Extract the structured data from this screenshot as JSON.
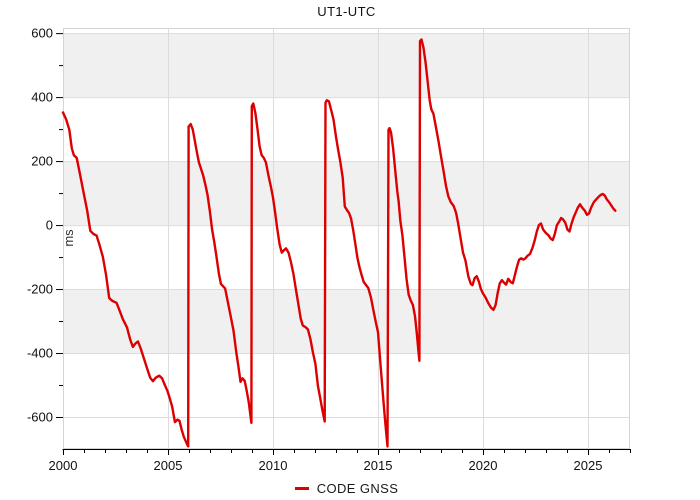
{
  "chart_data": {
    "type": "line",
    "title": "UT1-UTC",
    "ylabel": "ms",
    "legend_position": "bottom-center",
    "grid": true,
    "axes": {
      "xlim": [
        2000,
        2027
      ],
      "ylim": [
        -700,
        616
      ],
      "x_major_ticks": [
        2000,
        2005,
        2010,
        2015,
        2020,
        2025
      ],
      "x_minor_step": 1,
      "y_major_ticks": [
        -600,
        -400,
        -200,
        0,
        200,
        400,
        600
      ],
      "y_minor_step": 100,
      "bands": [
        [
          400,
          600
        ],
        [
          0,
          200
        ],
        [
          -400,
          -200
        ]
      ],
      "band_color": "#f0f0f0",
      "grid_color": "#dcdcdc",
      "axis_color": "#000000",
      "tick_label_color": "#111111"
    },
    "series": [
      {
        "name": "CODE GNSS",
        "color": "#dd0000",
        "width": 2.4,
        "points": [
          [
            2000.0,
            352
          ],
          [
            2000.15,
            330
          ],
          [
            2000.3,
            298
          ],
          [
            2000.42,
            240
          ],
          [
            2000.52,
            218
          ],
          [
            2000.65,
            210
          ],
          [
            2000.8,
            162
          ],
          [
            2001.0,
            95
          ],
          [
            2001.15,
            45
          ],
          [
            2001.3,
            -18
          ],
          [
            2001.45,
            -28
          ],
          [
            2001.6,
            -33
          ],
          [
            2001.75,
            -65
          ],
          [
            2001.9,
            -100
          ],
          [
            2002.05,
            -155
          ],
          [
            2002.2,
            -228
          ],
          [
            2002.35,
            -237
          ],
          [
            2002.55,
            -243
          ],
          [
            2002.7,
            -268
          ],
          [
            2002.85,
            -294
          ],
          [
            2003.05,
            -320
          ],
          [
            2003.2,
            -358
          ],
          [
            2003.33,
            -381
          ],
          [
            2003.45,
            -370
          ],
          [
            2003.57,
            -364
          ],
          [
            2003.7,
            -386
          ],
          [
            2003.85,
            -416
          ],
          [
            2004.0,
            -447
          ],
          [
            2004.15,
            -477
          ],
          [
            2004.28,
            -488
          ],
          [
            2004.42,
            -477
          ],
          [
            2004.58,
            -471
          ],
          [
            2004.72,
            -479
          ],
          [
            2004.85,
            -500
          ],
          [
            2004.97,
            -518
          ],
          [
            2005.1,
            -545
          ],
          [
            2005.2,
            -568
          ],
          [
            2005.33,
            -616
          ],
          [
            2005.45,
            -608
          ],
          [
            2005.55,
            -612
          ],
          [
            2005.65,
            -640
          ],
          [
            2005.75,
            -662
          ],
          [
            2005.85,
            -676
          ],
          [
            2005.93,
            -688
          ],
          [
            2005.96,
            -692
          ],
          [
            2005.98,
            308
          ],
          [
            2006.08,
            316
          ],
          [
            2006.18,
            298
          ],
          [
            2006.28,
            262
          ],
          [
            2006.38,
            226
          ],
          [
            2006.47,
            196
          ],
          [
            2006.57,
            176
          ],
          [
            2006.67,
            156
          ],
          [
            2006.78,
            126
          ],
          [
            2006.88,
            95
          ],
          [
            2007.0,
            40
          ],
          [
            2007.1,
            -14
          ],
          [
            2007.2,
            -52
          ],
          [
            2007.3,
            -95
          ],
          [
            2007.42,
            -150
          ],
          [
            2007.52,
            -184
          ],
          [
            2007.62,
            -191
          ],
          [
            2007.72,
            -198
          ],
          [
            2007.85,
            -240
          ],
          [
            2008.0,
            -290
          ],
          [
            2008.12,
            -330
          ],
          [
            2008.25,
            -398
          ],
          [
            2008.38,
            -455
          ],
          [
            2008.45,
            -490
          ],
          [
            2008.55,
            -479
          ],
          [
            2008.65,
            -487
          ],
          [
            2008.75,
            -520
          ],
          [
            2008.85,
            -555
          ],
          [
            2008.92,
            -592
          ],
          [
            2008.97,
            -618
          ],
          [
            2008.99,
            372
          ],
          [
            2009.06,
            380
          ],
          [
            2009.16,
            350
          ],
          [
            2009.26,
            300
          ],
          [
            2009.36,
            246
          ],
          [
            2009.46,
            218
          ],
          [
            2009.56,
            210
          ],
          [
            2009.66,
            196
          ],
          [
            2009.78,
            156
          ],
          [
            2009.9,
            120
          ],
          [
            2010.0,
            86
          ],
          [
            2010.1,
            40
          ],
          [
            2010.2,
            -10
          ],
          [
            2010.32,
            -62
          ],
          [
            2010.42,
            -86
          ],
          [
            2010.52,
            -79
          ],
          [
            2010.62,
            -73
          ],
          [
            2010.74,
            -86
          ],
          [
            2010.85,
            -114
          ],
          [
            2010.97,
            -152
          ],
          [
            2011.1,
            -205
          ],
          [
            2011.22,
            -252
          ],
          [
            2011.32,
            -292
          ],
          [
            2011.42,
            -314
          ],
          [
            2011.55,
            -319
          ],
          [
            2011.66,
            -326
          ],
          [
            2011.78,
            -356
          ],
          [
            2011.9,
            -398
          ],
          [
            2012.02,
            -434
          ],
          [
            2012.14,
            -502
          ],
          [
            2012.26,
            -546
          ],
          [
            2012.36,
            -582
          ],
          [
            2012.46,
            -614
          ],
          [
            2012.5,
            382
          ],
          [
            2012.56,
            390
          ],
          [
            2012.66,
            387
          ],
          [
            2012.76,
            362
          ],
          [
            2012.88,
            330
          ],
          [
            2013.0,
            276
          ],
          [
            2013.1,
            236
          ],
          [
            2013.2,
            200
          ],
          [
            2013.32,
            148
          ],
          [
            2013.42,
            58
          ],
          [
            2013.52,
            47
          ],
          [
            2013.62,
            38
          ],
          [
            2013.72,
            20
          ],
          [
            2013.82,
            -16
          ],
          [
            2013.92,
            -58
          ],
          [
            2014.02,
            -102
          ],
          [
            2014.12,
            -132
          ],
          [
            2014.22,
            -156
          ],
          [
            2014.32,
            -178
          ],
          [
            2014.44,
            -188
          ],
          [
            2014.54,
            -197
          ],
          [
            2014.66,
            -226
          ],
          [
            2014.78,
            -266
          ],
          [
            2014.9,
            -305
          ],
          [
            2015.0,
            -335
          ],
          [
            2015.1,
            -420
          ],
          [
            2015.2,
            -502
          ],
          [
            2015.3,
            -582
          ],
          [
            2015.38,
            -642
          ],
          [
            2015.45,
            -692
          ],
          [
            2015.5,
            298
          ],
          [
            2015.55,
            303
          ],
          [
            2015.62,
            290
          ],
          [
            2015.72,
            240
          ],
          [
            2015.82,
            172
          ],
          [
            2015.92,
            105
          ],
          [
            2015.98,
            75
          ],
          [
            2016.06,
            15
          ],
          [
            2016.16,
            -32
          ],
          [
            2016.26,
            -100
          ],
          [
            2016.36,
            -170
          ],
          [
            2016.46,
            -218
          ],
          [
            2016.56,
            -236
          ],
          [
            2016.66,
            -250
          ],
          [
            2016.76,
            -285
          ],
          [
            2016.85,
            -338
          ],
          [
            2016.92,
            -390
          ],
          [
            2016.97,
            -424
          ],
          [
            2017.0,
            575
          ],
          [
            2017.07,
            580
          ],
          [
            2017.16,
            556
          ],
          [
            2017.26,
            510
          ],
          [
            2017.36,
            450
          ],
          [
            2017.46,
            390
          ],
          [
            2017.54,
            362
          ],
          [
            2017.64,
            348
          ],
          [
            2017.76,
            305
          ],
          [
            2017.88,
            262
          ],
          [
            2018.0,
            215
          ],
          [
            2018.12,
            170
          ],
          [
            2018.24,
            122
          ],
          [
            2018.35,
            90
          ],
          [
            2018.46,
            72
          ],
          [
            2018.6,
            60
          ],
          [
            2018.72,
            38
          ],
          [
            2018.82,
            4
          ],
          [
            2018.92,
            -36
          ],
          [
            2019.05,
            -86
          ],
          [
            2019.16,
            -110
          ],
          [
            2019.3,
            -160
          ],
          [
            2019.42,
            -184
          ],
          [
            2019.5,
            -188
          ],
          [
            2019.6,
            -166
          ],
          [
            2019.7,
            -160
          ],
          [
            2019.8,
            -176
          ],
          [
            2019.9,
            -200
          ],
          [
            2020.0,
            -214
          ],
          [
            2020.12,
            -226
          ],
          [
            2020.25,
            -244
          ],
          [
            2020.38,
            -258
          ],
          [
            2020.5,
            -265
          ],
          [
            2020.6,
            -250
          ],
          [
            2020.7,
            -212
          ],
          [
            2020.8,
            -182
          ],
          [
            2020.9,
            -172
          ],
          [
            2021.0,
            -180
          ],
          [
            2021.1,
            -186
          ],
          [
            2021.2,
            -168
          ],
          [
            2021.32,
            -178
          ],
          [
            2021.42,
            -182
          ],
          [
            2021.52,
            -156
          ],
          [
            2021.62,
            -130
          ],
          [
            2021.72,
            -108
          ],
          [
            2021.82,
            -104
          ],
          [
            2021.92,
            -108
          ],
          [
            2022.02,
            -104
          ],
          [
            2022.12,
            -96
          ],
          [
            2022.24,
            -90
          ],
          [
            2022.36,
            -70
          ],
          [
            2022.46,
            -48
          ],
          [
            2022.56,
            -20
          ],
          [
            2022.66,
            0
          ],
          [
            2022.76,
            5
          ],
          [
            2022.86,
            -14
          ],
          [
            2023.0,
            -25
          ],
          [
            2023.12,
            -32
          ],
          [
            2023.22,
            -42
          ],
          [
            2023.32,
            -47
          ],
          [
            2023.42,
            -28
          ],
          [
            2023.52,
            0
          ],
          [
            2023.62,
            10
          ],
          [
            2023.72,
            22
          ],
          [
            2023.82,
            17
          ],
          [
            2023.92,
            7
          ],
          [
            2024.02,
            -14
          ],
          [
            2024.12,
            -20
          ],
          [
            2024.22,
            5
          ],
          [
            2024.32,
            25
          ],
          [
            2024.42,
            40
          ],
          [
            2024.52,
            55
          ],
          [
            2024.62,
            65
          ],
          [
            2024.72,
            55
          ],
          [
            2024.85,
            45
          ],
          [
            2024.95,
            32
          ],
          [
            2025.05,
            36
          ],
          [
            2025.15,
            55
          ],
          [
            2025.28,
            72
          ],
          [
            2025.4,
            81
          ],
          [
            2025.5,
            88
          ],
          [
            2025.6,
            94
          ],
          [
            2025.7,
            97
          ],
          [
            2025.8,
            92
          ],
          [
            2025.9,
            80
          ],
          [
            2026.0,
            72
          ],
          [
            2026.1,
            62
          ],
          [
            2026.2,
            52
          ],
          [
            2026.3,
            45
          ]
        ]
      }
    ]
  }
}
